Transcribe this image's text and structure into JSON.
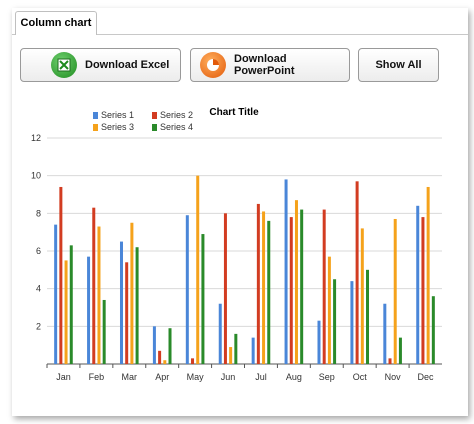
{
  "tab": {
    "label": "Column chart"
  },
  "toolbar": {
    "excel_label": "Download Excel",
    "ppt_label": "Download PowerPoint",
    "show_all_label": "Show All"
  },
  "colors": {
    "series1": "#4a86d8",
    "series2": "#d23c21",
    "series3": "#f5a21b",
    "series4": "#2a8a2a"
  },
  "chart_data": {
    "type": "bar",
    "title": "Chart Title",
    "categories": [
      "Jan",
      "Feb",
      "Mar",
      "Apr",
      "May",
      "Jun",
      "Jul",
      "Aug",
      "Sep",
      "Oct",
      "Nov",
      "Dec"
    ],
    "ylim": [
      0,
      12
    ],
    "yticks": [
      2,
      4,
      6,
      8,
      10,
      12
    ],
    "grid": true,
    "legend": "top-left",
    "series": [
      {
        "name": "Series 1",
        "values": [
          7.4,
          5.7,
          6.5,
          2.0,
          7.9,
          3.2,
          1.4,
          9.8,
          2.3,
          4.4,
          3.2,
          8.4
        ]
      },
      {
        "name": "Series 2",
        "values": [
          9.4,
          8.3,
          5.4,
          0.7,
          0.3,
          8.0,
          8.5,
          7.8,
          8.2,
          9.7,
          0.3,
          7.8
        ]
      },
      {
        "name": "Series 3",
        "values": [
          5.5,
          7.3,
          7.5,
          0.2,
          10.0,
          0.9,
          8.1,
          8.7,
          5.7,
          7.2,
          7.7,
          9.4
        ]
      },
      {
        "name": "Series 4",
        "values": [
          6.3,
          3.4,
          6.2,
          1.9,
          6.9,
          1.6,
          7.6,
          8.2,
          4.5,
          5.0,
          1.4,
          3.6
        ]
      }
    ]
  }
}
